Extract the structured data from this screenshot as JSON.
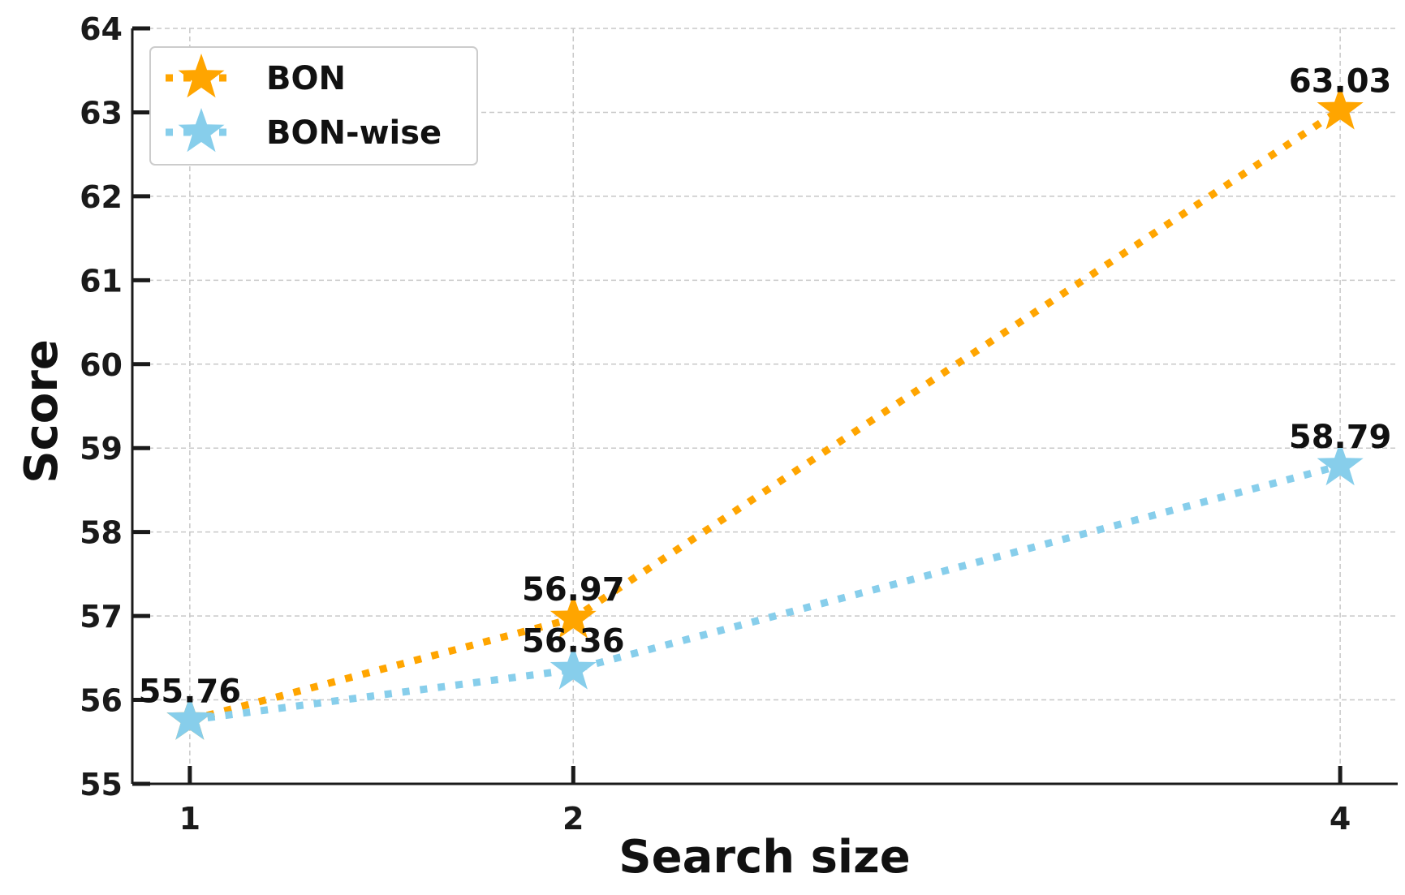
{
  "chart_data": {
    "type": "line",
    "xlabel": "Search size",
    "ylabel": "Score",
    "x": [
      1,
      2,
      4
    ],
    "x_tick_labels": [
      "1",
      "2",
      "4"
    ],
    "xlim": [
      0.85,
      4.15
    ],
    "ylim": [
      55,
      64
    ],
    "y_ticks": [
      55,
      56,
      57,
      58,
      59,
      60,
      61,
      62,
      63,
      64
    ],
    "y_tick_labels": [
      "55",
      "56",
      "57",
      "58",
      "59",
      "60",
      "61",
      "62",
      "63",
      "64"
    ],
    "grid": true,
    "legend_position": "top-left",
    "series": [
      {
        "name": "BON",
        "color": "#FFA500",
        "marker": "star",
        "line_style": "dotted",
        "values": [
          55.76,
          56.97,
          63.03
        ],
        "labels": [
          "",
          "56.97",
          "63.03"
        ]
      },
      {
        "name": "BON-wise",
        "color": "#87CEEB",
        "marker": "star",
        "line_style": "dotted",
        "values": [
          55.76,
          56.36,
          58.79
        ],
        "labels": [
          "55.76",
          "56.36",
          "58.79"
        ]
      }
    ]
  }
}
